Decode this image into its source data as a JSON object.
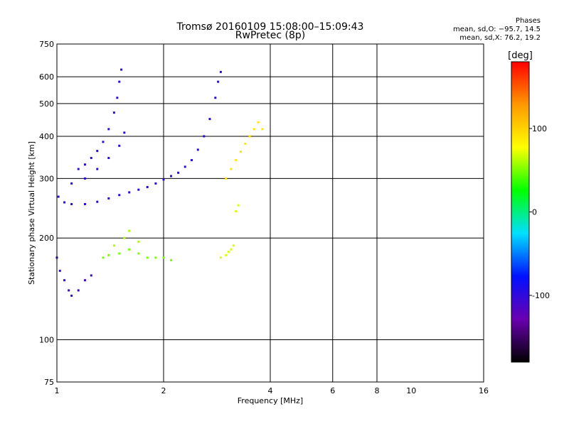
{
  "header": {
    "title_line1": "Tromsø 20160109 15:08:00–15:09:43",
    "title_line2": "RwPretec (8p)",
    "phase_title": "Phases",
    "phase_stats_o": "mean, sd,O: −95.7, 14.5",
    "phase_stats_x": "mean, sd,X:  76.2, 19.2"
  },
  "chart_data": {
    "type": "scatter",
    "title": "Tromsø 20160109 15:08:00–15:09:43",
    "subtitle": "RwPretec (8p)",
    "xlabel": "Frequency [MHz]",
    "ylabel": "Stationary phase Virtual Height [km]",
    "x_scale": "log",
    "y_scale": "log",
    "xlim": [
      1,
      16
    ],
    "ylim": [
      75,
      750
    ],
    "x_ticks": [
      1,
      2,
      4,
      6,
      8,
      10,
      16
    ],
    "y_ticks": [
      75,
      100,
      200,
      300,
      400,
      500,
      600,
      750
    ],
    "x_gridlines": [
      2,
      4,
      6,
      8
    ],
    "y_gridlines": [
      100,
      200,
      300,
      400,
      500,
      600
    ],
    "colorbar": {
      "label": "[deg]",
      "range": [
        -180,
        180
      ],
      "ticks": [
        100,
        0,
        -100
      ],
      "colors": [
        "#000000",
        "#6a00b0",
        "#0010ff",
        "#00e0ff",
        "#00ff00",
        "#ffff00",
        "#ff9900",
        "#ff0000"
      ]
    },
    "series": [
      {
        "phase": -95,
        "points": [
          [
            1.01,
            265
          ],
          [
            1.05,
            255
          ],
          [
            1.1,
            252
          ],
          [
            1.2,
            252
          ],
          [
            1.3,
            256
          ],
          [
            1.4,
            262
          ],
          [
            1.5,
            268
          ],
          [
            1.6,
            273
          ],
          [
            1.7,
            278
          ],
          [
            1.8,
            283
          ],
          [
            1.9,
            290
          ],
          [
            2.0,
            298
          ],
          [
            2.1,
            305
          ],
          [
            2.2,
            312
          ],
          [
            2.3,
            325
          ],
          [
            2.4,
            340
          ],
          [
            2.5,
            365
          ],
          [
            2.6,
            400
          ],
          [
            2.7,
            450
          ],
          [
            2.8,
            520
          ],
          [
            2.85,
            580
          ],
          [
            2.9,
            620
          ]
        ]
      },
      {
        "phase": -100,
        "points": [
          [
            1.15,
            320
          ],
          [
            1.2,
            330
          ],
          [
            1.25,
            345
          ],
          [
            1.3,
            362
          ],
          [
            1.35,
            385
          ],
          [
            1.4,
            420
          ],
          [
            1.45,
            470
          ],
          [
            1.48,
            520
          ],
          [
            1.5,
            580
          ],
          [
            1.52,
            630
          ]
        ]
      },
      {
        "phase": -95,
        "points": [
          [
            1.1,
            290
          ],
          [
            1.2,
            300
          ],
          [
            1.3,
            320
          ],
          [
            1.4,
            345
          ],
          [
            1.5,
            375
          ],
          [
            1.55,
            410
          ]
        ]
      },
      {
        "phase": -105,
        "points": [
          [
            1.0,
            175
          ],
          [
            1.02,
            160
          ],
          [
            1.05,
            150
          ],
          [
            1.08,
            140
          ],
          [
            1.1,
            135
          ],
          [
            1.15,
            140
          ],
          [
            1.2,
            150
          ],
          [
            1.25,
            155
          ]
        ]
      },
      {
        "phase": 50,
        "points": [
          [
            1.35,
            175
          ],
          [
            1.4,
            178
          ],
          [
            1.5,
            180
          ],
          [
            1.6,
            185
          ],
          [
            1.7,
            180
          ],
          [
            1.8,
            175
          ],
          [
            1.9,
            175
          ],
          [
            2.0,
            175
          ],
          [
            2.1,
            172
          ]
        ]
      },
      {
        "phase": 60,
        "points": [
          [
            1.45,
            190
          ],
          [
            1.55,
            200
          ],
          [
            1.6,
            210
          ],
          [
            1.7,
            195
          ]
        ]
      },
      {
        "phase": 70,
        "points": [
          [
            2.9,
            175
          ],
          [
            3.0,
            178
          ],
          [
            3.05,
            182
          ],
          [
            3.1,
            185
          ],
          [
            3.15,
            190
          ],
          [
            3.2,
            240
          ],
          [
            3.25,
            250
          ]
        ]
      },
      {
        "phase": 90,
        "points": [
          [
            3.0,
            300
          ],
          [
            3.1,
            320
          ],
          [
            3.2,
            340
          ],
          [
            3.3,
            360
          ],
          [
            3.4,
            380
          ],
          [
            3.5,
            400
          ],
          [
            3.6,
            420
          ],
          [
            3.7,
            440
          ],
          [
            3.8,
            420
          ]
        ]
      }
    ]
  }
}
